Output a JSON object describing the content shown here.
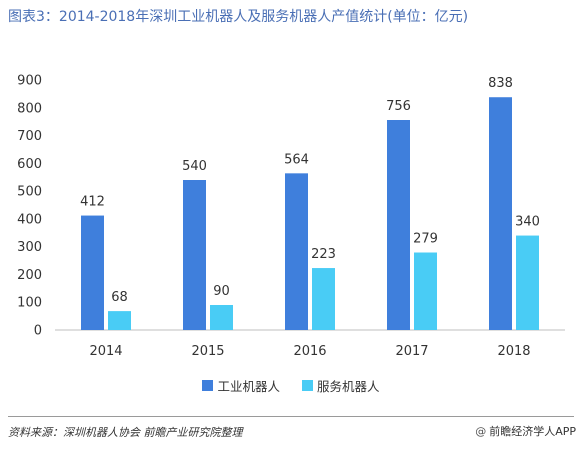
{
  "header": {
    "title": "图表3：2014-2018年深圳工业机器人及服务机器人产值统计(单位：亿元)"
  },
  "footer": {
    "source": "资料来源：深圳机器人协会 前瞻产业研究院整理",
    "brand": "前瞻经济学人APP"
  },
  "colors": {
    "industrial": "#3f7fdc",
    "service": "#49ccf5",
    "title": "#4a6fb5"
  },
  "chart_data": {
    "type": "bar",
    "title": "图表3：2014-2018年深圳工业机器人及服务机器人产值统计(单位：亿元)",
    "categories": [
      "2014",
      "2015",
      "2016",
      "2017",
      "2018"
    ],
    "series": [
      {
        "name": "工业机器人",
        "values": [
          412,
          540,
          564,
          756,
          838
        ]
      },
      {
        "name": "服务机器人",
        "values": [
          68,
          90,
          223,
          279,
          340
        ]
      }
    ],
    "ylim": [
      0,
      900
    ],
    "yticks": [
      0,
      100,
      200,
      300,
      400,
      500,
      600,
      700,
      800,
      900
    ],
    "grid": false,
    "legend": "bottom-center",
    "data_labels": true
  }
}
